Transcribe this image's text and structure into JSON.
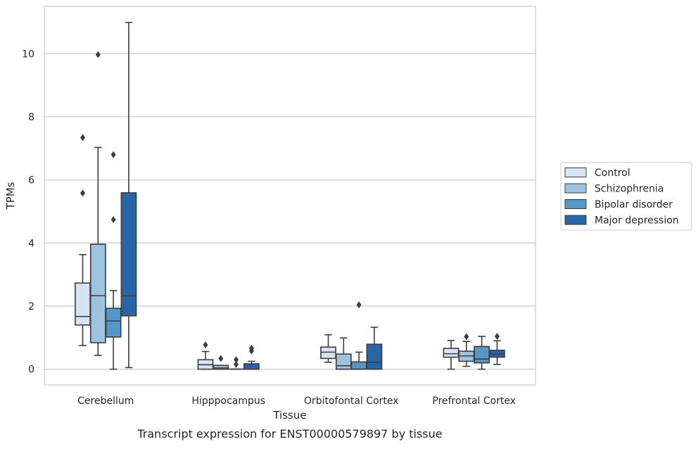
{
  "chart_data": {
    "type": "box",
    "title": "",
    "caption": "Transcript expression for ENST00000579897 by tissue",
    "xlabel": "Tissue",
    "ylabel": "TPMs",
    "ylim": [
      -0.5,
      11.5
    ],
    "yticks": [
      0,
      2,
      4,
      6,
      8,
      10
    ],
    "grid": "horizontal",
    "legend_position": "right",
    "categories": [
      "Cerebellum",
      "Hipppocampus",
      "Orbitofontal Cortex",
      "Prefrontal Cortex"
    ],
    "series": [
      {
        "name": "Control",
        "color": "#d6e4f3",
        "boxes": [
          {
            "whisker_low": 0.75,
            "q1": 1.4,
            "median": 1.67,
            "q3": 2.73,
            "whisker_high": 3.63,
            "outliers": [
              5.58,
              7.34
            ]
          },
          {
            "whisker_low": 0.0,
            "q1": 0.0,
            "median": 0.14,
            "q3": 0.3,
            "whisker_high": 0.56,
            "outliers": [
              0.77
            ]
          },
          {
            "whisker_low": 0.22,
            "q1": 0.34,
            "median": 0.54,
            "q3": 0.7,
            "whisker_high": 1.09,
            "outliers": []
          },
          {
            "whisker_low": 0.0,
            "q1": 0.38,
            "median": 0.49,
            "q3": 0.66,
            "whisker_high": 0.91,
            "outliers": []
          }
        ]
      },
      {
        "name": "Schizophrenia",
        "color": "#9dc3de",
        "boxes": [
          {
            "whisker_low": 0.44,
            "q1": 0.84,
            "median": 2.33,
            "q3": 3.96,
            "whisker_high": 7.03,
            "outliers": [
              9.97
            ]
          },
          {
            "whisker_low": 0.0,
            "q1": 0.0,
            "median": 0.04,
            "q3": 0.12,
            "whisker_high": 0.12,
            "outliers": [
              0.34
            ]
          },
          {
            "whisker_low": 0.0,
            "q1": 0.0,
            "median": 0.11,
            "q3": 0.48,
            "whisker_high": 0.99,
            "outliers": []
          },
          {
            "whisker_low": 0.09,
            "q1": 0.25,
            "median": 0.42,
            "q3": 0.57,
            "whisker_high": 0.88,
            "outliers": [
              1.03
            ]
          }
        ]
      },
      {
        "name": "Bipolar disorder",
        "color": "#5597c6",
        "boxes": [
          {
            "whisker_low": 0.0,
            "q1": 1.02,
            "median": 1.53,
            "q3": 1.93,
            "whisker_high": 2.49,
            "outliers": [
              4.74,
              6.8
            ]
          },
          {
            "whisker_low": 0.0,
            "q1": 0.0,
            "median": 0.0,
            "q3": 0.0,
            "whisker_high": 0.0,
            "outliers": [
              0.15,
              0.3
            ]
          },
          {
            "whisker_low": 0.0,
            "q1": 0.0,
            "median": 0.0,
            "q3": 0.23,
            "whisker_high": 0.54,
            "outliers": [
              2.04
            ]
          },
          {
            "whisker_low": 0.0,
            "q1": 0.2,
            "median": 0.32,
            "q3": 0.72,
            "whisker_high": 1.04,
            "outliers": []
          }
        ]
      },
      {
        "name": "Major depression",
        "color": "#2865a6",
        "boxes": [
          {
            "whisker_low": 0.05,
            "q1": 1.69,
            "median": 2.33,
            "q3": 5.59,
            "whisker_high": 10.99,
            "outliers": []
          },
          {
            "whisker_low": 0.0,
            "q1": 0.0,
            "median": 0.0,
            "q3": 0.17,
            "whisker_high": 0.25,
            "outliers": [
              0.58,
              0.66
            ]
          },
          {
            "whisker_low": 0.0,
            "q1": 0.0,
            "median": 0.22,
            "q3": 0.79,
            "whisker_high": 1.33,
            "outliers": []
          },
          {
            "whisker_low": 0.15,
            "q1": 0.38,
            "median": 0.48,
            "q3": 0.6,
            "whisker_high": 0.9,
            "outliers": [
              1.04
            ]
          }
        ]
      }
    ]
  }
}
